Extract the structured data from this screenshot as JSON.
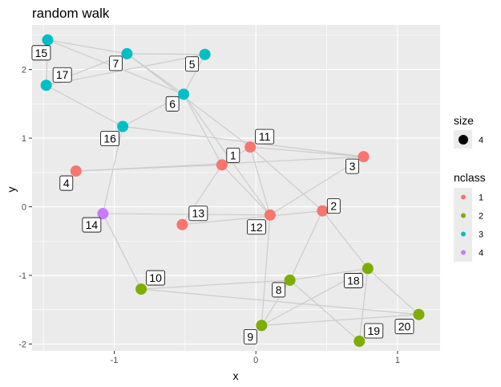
{
  "chart_data": {
    "type": "network",
    "title": "random walk",
    "xlabel": "x",
    "ylabel": "y",
    "xlim": [
      -1.58,
      1.3
    ],
    "ylim": [
      -2.1,
      2.65
    ],
    "x_ticks": [
      -1,
      0,
      1
    ],
    "x_tick_labels": [
      "-1",
      "0",
      "1"
    ],
    "y_ticks": [
      -2,
      -1,
      0,
      1,
      2
    ],
    "y_tick_labels": [
      "-2",
      "-1",
      "0",
      "1",
      "2"
    ],
    "grid": true,
    "colors": {
      "panel": "#ebebeb",
      "grid_major": "#ffffff",
      "edge": "#cccccc",
      "class_1": "#f8766d",
      "class_2": "#7cae00",
      "class_3": "#00bfc4",
      "class_4": "#c77cff"
    },
    "nodes": [
      {
        "id": "1",
        "x": -0.24,
        "y": 0.61,
        "nclass": "1"
      },
      {
        "id": "2",
        "x": 0.47,
        "y": -0.06,
        "nclass": "1"
      },
      {
        "id": "3",
        "x": 0.76,
        "y": 0.73,
        "nclass": "1"
      },
      {
        "id": "4",
        "x": -1.27,
        "y": 0.52,
        "nclass": "1"
      },
      {
        "id": "5",
        "x": -0.36,
        "y": 2.22,
        "nclass": "3"
      },
      {
        "id": "6",
        "x": -0.51,
        "y": 1.64,
        "nclass": "3"
      },
      {
        "id": "7",
        "x": -0.91,
        "y": 2.23,
        "nclass": "3"
      },
      {
        "id": "8",
        "x": 0.24,
        "y": -1.07,
        "nclass": "2"
      },
      {
        "id": "9",
        "x": 0.04,
        "y": -1.73,
        "nclass": "2"
      },
      {
        "id": "10",
        "x": -0.81,
        "y": -1.2,
        "nclass": "2"
      },
      {
        "id": "11",
        "x": -0.04,
        "y": 0.87,
        "nclass": "1"
      },
      {
        "id": "12",
        "x": 0.1,
        "y": -0.12,
        "nclass": "1"
      },
      {
        "id": "13",
        "x": -0.52,
        "y": -0.26,
        "nclass": "1"
      },
      {
        "id": "14",
        "x": -1.08,
        "y": -0.1,
        "nclass": "4"
      },
      {
        "id": "15",
        "x": -1.47,
        "y": 2.43,
        "nclass": "3"
      },
      {
        "id": "16",
        "x": -0.94,
        "y": 1.17,
        "nclass": "3"
      },
      {
        "id": "17",
        "x": -1.48,
        "y": 1.77,
        "nclass": "3"
      },
      {
        "id": "18",
        "x": 0.79,
        "y": -0.9,
        "nclass": "2"
      },
      {
        "id": "19",
        "x": 0.73,
        "y": -1.96,
        "nclass": "2"
      },
      {
        "id": "20",
        "x": 1.15,
        "y": -1.57,
        "nclass": "2"
      }
    ],
    "node_size": 4,
    "edges": [
      [
        "15",
        "7"
      ],
      [
        "15",
        "6"
      ],
      [
        "15",
        "17"
      ],
      [
        "17",
        "7"
      ],
      [
        "17",
        "5"
      ],
      [
        "17",
        "16"
      ],
      [
        "7",
        "5"
      ],
      [
        "7",
        "6"
      ],
      [
        "7",
        "11"
      ],
      [
        "6",
        "5"
      ],
      [
        "6",
        "16"
      ],
      [
        "6",
        "1"
      ],
      [
        "6",
        "12"
      ],
      [
        "16",
        "3"
      ],
      [
        "16",
        "14"
      ],
      [
        "4",
        "1"
      ],
      [
        "4",
        "3"
      ],
      [
        "1",
        "11"
      ],
      [
        "1",
        "12"
      ],
      [
        "11",
        "3"
      ],
      [
        "11",
        "12"
      ],
      [
        "11",
        "2"
      ],
      [
        "3",
        "12"
      ],
      [
        "13",
        "1"
      ],
      [
        "13",
        "2"
      ],
      [
        "14",
        "12"
      ],
      [
        "14",
        "10"
      ],
      [
        "12",
        "9"
      ],
      [
        "2",
        "8"
      ],
      [
        "2",
        "18"
      ],
      [
        "10",
        "8"
      ],
      [
        "10",
        "20"
      ],
      [
        "8",
        "9"
      ],
      [
        "8",
        "19"
      ],
      [
        "8",
        "18"
      ],
      [
        "9",
        "18"
      ],
      [
        "9",
        "20"
      ],
      [
        "18",
        "19"
      ],
      [
        "18",
        "20"
      ]
    ],
    "legend": {
      "position": "right",
      "size_title": "size",
      "size_entries": [
        "4"
      ],
      "color_title": "nclass",
      "color_entries": [
        {
          "label": "1",
          "color": "#f8766d"
        },
        {
          "label": "2",
          "color": "#7cae00"
        },
        {
          "label": "3",
          "color": "#00bfc4"
        },
        {
          "label": "4",
          "color": "#c77cff"
        }
      ]
    }
  }
}
